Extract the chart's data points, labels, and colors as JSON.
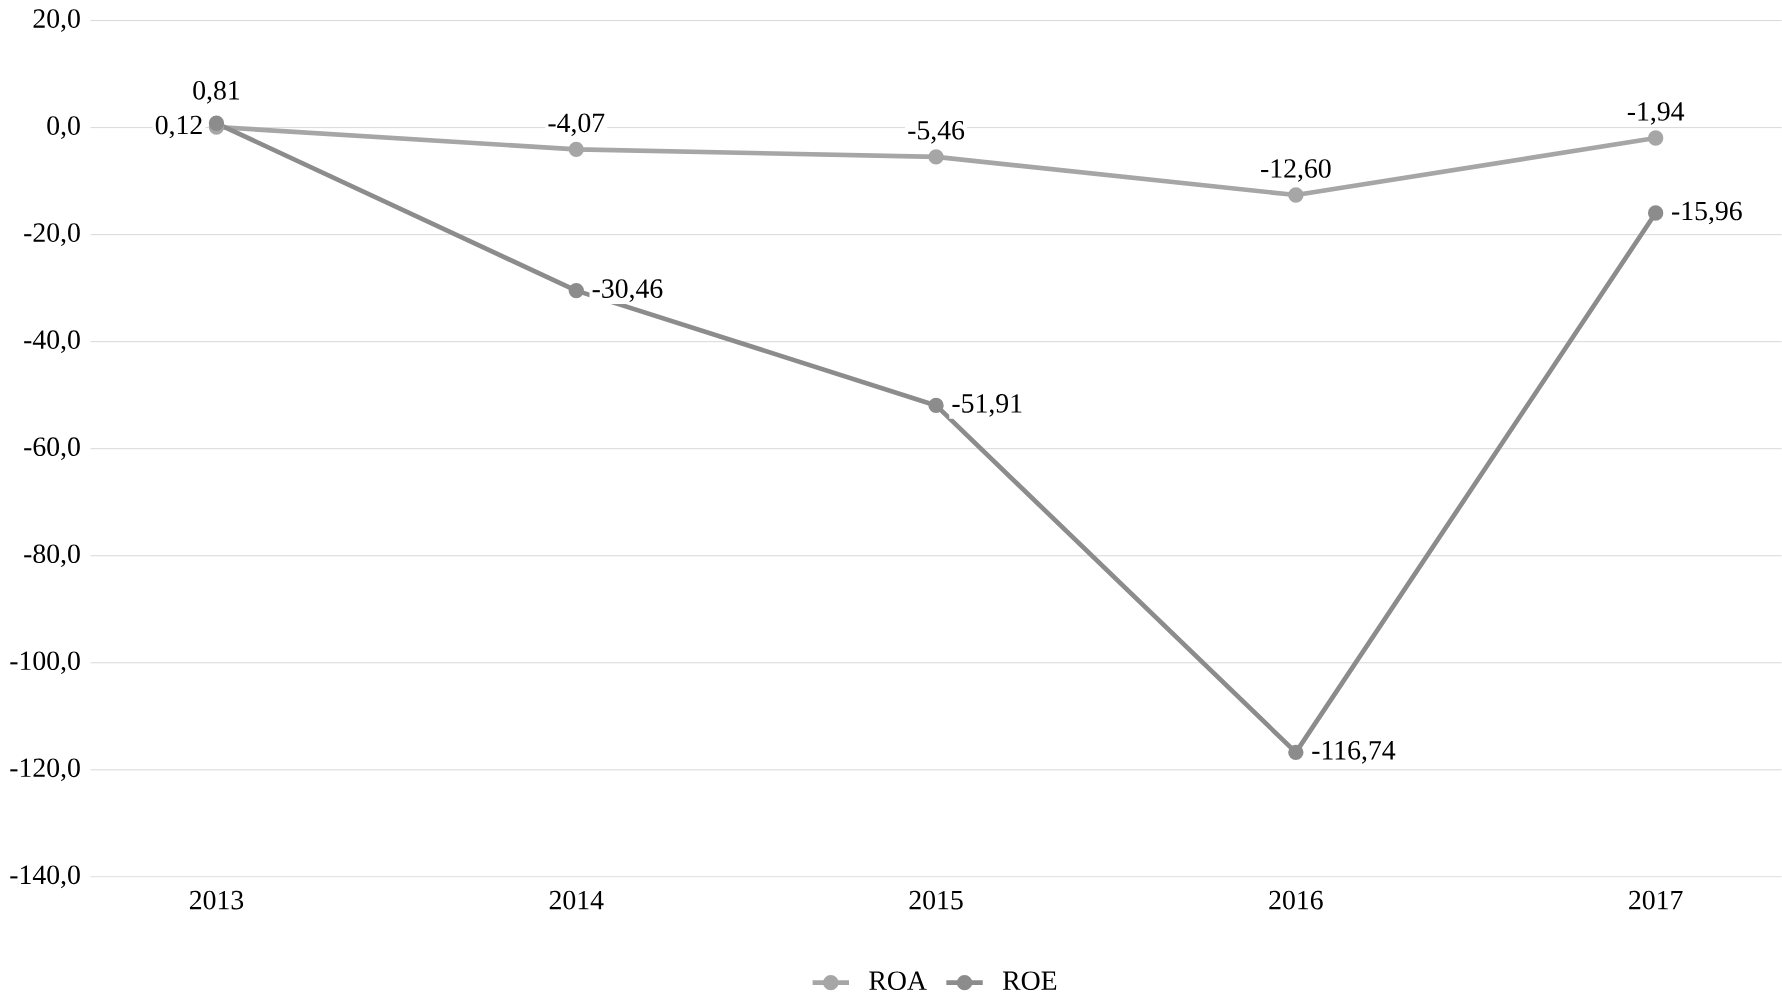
{
  "chart_data": {
    "type": "line",
    "categories": [
      "2013",
      "2014",
      "2015",
      "2016",
      "2017"
    ],
    "series": [
      {
        "name": "ROA",
        "color": "#a6a6a6",
        "values": [
          0.12,
          -4.07,
          -5.46,
          -12.6,
          -1.94
        ],
        "value_labels": [
          "0,12",
          "-4,07",
          "-5,46",
          "-12,60",
          "-1,94"
        ]
      },
      {
        "name": "ROE",
        "color": "#8c8c8c",
        "values": [
          0.81,
          -30.46,
          -51.91,
          -116.74,
          -15.96
        ],
        "value_labels": [
          "0,81",
          "-30,46",
          "-51,91",
          "-116,74",
          "-15,96"
        ]
      }
    ],
    "ylim": [
      -140,
      20
    ],
    "yticks": [
      {
        "value": 20,
        "label": "20,0"
      },
      {
        "value": 0,
        "label": "0,0"
      },
      {
        "value": -20,
        "label": "-20,0"
      },
      {
        "value": -40,
        "label": "-40,0"
      },
      {
        "value": -60,
        "label": "-60,0"
      },
      {
        "value": -80,
        "label": "-80,0"
      },
      {
        "value": -100,
        "label": "-100,0"
      },
      {
        "value": -120,
        "label": "-120,0"
      },
      {
        "value": -140,
        "label": "-140,0"
      }
    ],
    "grid": "y",
    "legend": "bottom",
    "marker": "circle",
    "line_style": "solid"
  }
}
